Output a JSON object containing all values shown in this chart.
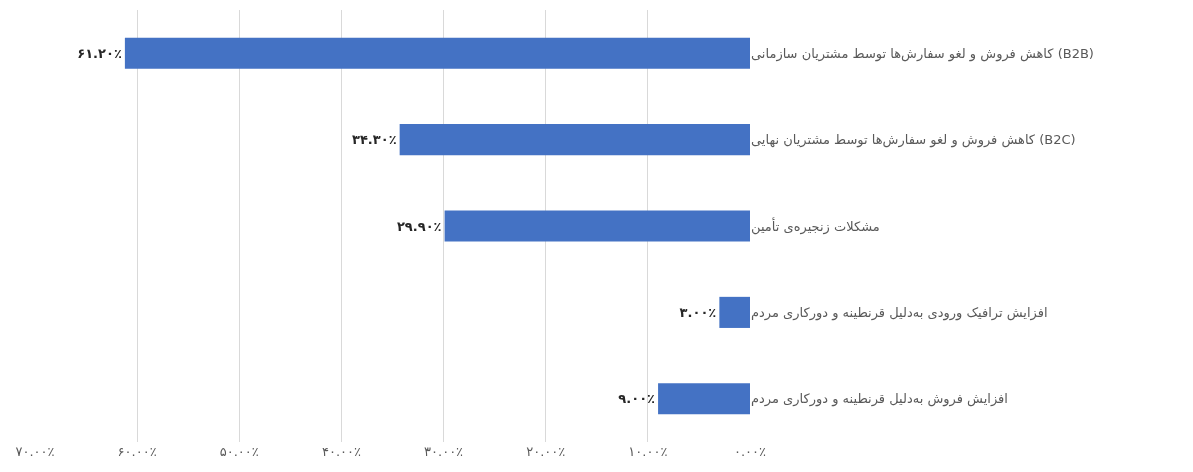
{
  "chart_data": {
    "type": "bar",
    "orientation": "horizontal",
    "categories": [
      "کاهش فروش و لغو سفارش‌ها توسط مشتریان سازمانی (B2B)",
      "کاهش فروش و لغو سفارش‌ها توسط مشتریان نهایی (B2C)",
      "مشکلات زنجیره‌ی تأمین",
      "افزایش ترافیک ورودی به‌دلیل قرنطینه و دورکاری مردم",
      "افزایش فروش به‌دلیل قرنطینه و دورکاری مردم"
    ],
    "values": [
      61.2,
      34.3,
      29.9,
      3.0,
      9.0
    ],
    "value_labels": [
      "۶۱.۲۰٪",
      "۳۴.۳۰٪",
      "۲۹.۹۰٪",
      "۳.۰۰٪",
      "۹.۰۰٪"
    ],
    "color": "#4472c4",
    "xlim": [
      70,
      0
    ],
    "xticks": [
      {
        "value": 70,
        "label": "۷۰.۰۰٪"
      },
      {
        "value": 60,
        "label": "۶۰.۰۰٪"
      },
      {
        "value": 50,
        "label": "۵۰.۰۰٪"
      },
      {
        "value": 40,
        "label": "۴۰.۰۰٪"
      },
      {
        "value": 30,
        "label": "۳۰.۰۰٪"
      },
      {
        "value": 20,
        "label": "۲۰.۰۰٪"
      },
      {
        "value": 10,
        "label": "۱۰.۰۰٪"
      },
      {
        "value": 0,
        "label": "۰.۰۰٪"
      }
    ],
    "grid": "x"
  }
}
